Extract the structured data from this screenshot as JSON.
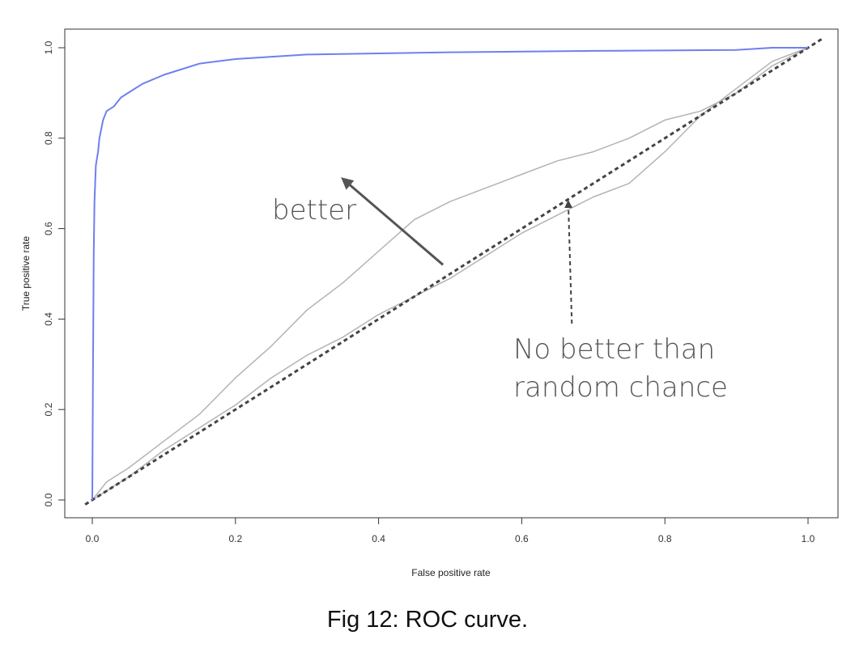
{
  "caption": "Fig 12: ROC curve.",
  "colors": {
    "model_curve": "#6f7ff0",
    "comparison_curves": "#b3b3b3",
    "chance_line": "#444444",
    "arrow": "#555555",
    "annotation_text": "#555555"
  },
  "chart_data": {
    "type": "line",
    "xlabel": "False positive rate",
    "ylabel": "True positive rate",
    "xlim": [
      0,
      1
    ],
    "ylim": [
      0,
      1
    ],
    "xticks": [
      "0.0",
      "0.2",
      "0.4",
      "0.6",
      "0.8",
      "1.0"
    ],
    "yticks": [
      "0.0",
      "0.2",
      "0.4",
      "0.6",
      "0.8",
      "1.0"
    ],
    "grid": false,
    "series": [
      {
        "role": "model-curve",
        "color": "#6f7ff0",
        "x": [
          0.0,
          0.001,
          0.002,
          0.003,
          0.005,
          0.008,
          0.01,
          0.015,
          0.02,
          0.03,
          0.04,
          0.05,
          0.07,
          0.1,
          0.15,
          0.2,
          0.3,
          0.5,
          0.7,
          0.9,
          0.95,
          1.0
        ],
        "y": [
          0.0,
          0.3,
          0.55,
          0.66,
          0.74,
          0.77,
          0.8,
          0.84,
          0.86,
          0.87,
          0.89,
          0.9,
          0.92,
          0.94,
          0.965,
          0.975,
          0.985,
          0.99,
          0.993,
          0.995,
          1.0,
          1.0
        ]
      },
      {
        "role": "comparison-curve-upper",
        "color": "#b3b3b3",
        "x": [
          0.0,
          0.02,
          0.05,
          0.1,
          0.15,
          0.2,
          0.25,
          0.3,
          0.35,
          0.4,
          0.45,
          0.5,
          0.55,
          0.6,
          0.65,
          0.7,
          0.75,
          0.8,
          0.85,
          0.9,
          0.95,
          1.0
        ],
        "y": [
          0.0,
          0.04,
          0.07,
          0.13,
          0.19,
          0.27,
          0.34,
          0.42,
          0.48,
          0.55,
          0.62,
          0.66,
          0.69,
          0.72,
          0.75,
          0.77,
          0.8,
          0.84,
          0.86,
          0.9,
          0.96,
          1.0
        ]
      },
      {
        "role": "comparison-curve-lower",
        "color": "#b3b3b3",
        "x": [
          0.0,
          0.02,
          0.05,
          0.1,
          0.15,
          0.2,
          0.25,
          0.3,
          0.35,
          0.4,
          0.45,
          0.5,
          0.55,
          0.6,
          0.65,
          0.7,
          0.75,
          0.8,
          0.85,
          0.9,
          0.95,
          1.0
        ],
        "y": [
          0.0,
          0.02,
          0.05,
          0.11,
          0.16,
          0.21,
          0.27,
          0.32,
          0.36,
          0.41,
          0.45,
          0.49,
          0.54,
          0.59,
          0.63,
          0.67,
          0.7,
          0.77,
          0.85,
          0.91,
          0.97,
          1.0
        ]
      },
      {
        "role": "chance-line",
        "color": "#444444",
        "dashed": true,
        "x": [
          0.0,
          1.0
        ],
        "y": [
          0.0,
          1.0
        ]
      }
    ],
    "annotations": [
      {
        "role": "better",
        "text": "better",
        "x": 0.25,
        "y": 0.63,
        "arrow_from": [
          0.49,
          0.52
        ],
        "arrow_to": [
          0.35,
          0.71
        ],
        "arrow_dashed": false
      },
      {
        "role": "random",
        "lines": [
          "No better than",
          "random chance"
        ],
        "x": 0.59,
        "y": 0.33,
        "arrow_from": [
          0.67,
          0.39
        ],
        "arrow_to": [
          0.665,
          0.66
        ],
        "arrow_dashed": true
      }
    ]
  }
}
